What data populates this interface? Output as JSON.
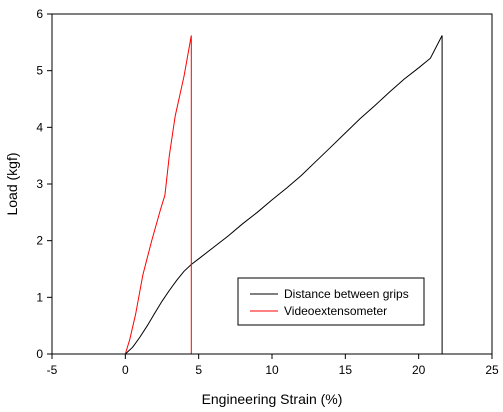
{
  "chart_data": {
    "type": "line",
    "title": "",
    "xlabel": "Engineering Strain (%)",
    "ylabel": "Load (kgf)",
    "xlim": [
      -5,
      25
    ],
    "ylim": [
      0,
      6
    ],
    "x_ticks": [
      -5,
      0,
      5,
      10,
      15,
      20,
      25
    ],
    "y_ticks": [
      0,
      1,
      2,
      3,
      4,
      5,
      6
    ],
    "grid": false,
    "legend_position": "bottom-right",
    "series": [
      {
        "name": "Distance between grips",
        "color": "#000000",
        "x": [
          0,
          0.5,
          1,
          1.5,
          2,
          2.5,
          3,
          3.5,
          4,
          4.5,
          5,
          6,
          7,
          8,
          9,
          10,
          11,
          12,
          13,
          14,
          15,
          16,
          17,
          18,
          19,
          20,
          20.8,
          21.6,
          21.6
        ],
        "y": [
          0,
          0.12,
          0.3,
          0.5,
          0.72,
          0.93,
          1.12,
          1.3,
          1.46,
          1.58,
          1.68,
          1.88,
          2.08,
          2.3,
          2.5,
          2.72,
          2.93,
          3.15,
          3.4,
          3.65,
          3.9,
          4.15,
          4.38,
          4.62,
          4.85,
          5.05,
          5.22,
          5.62,
          0
        ]
      },
      {
        "name": "Videoextensometer",
        "color": "#ff0000",
        "x": [
          0,
          0.3,
          0.7,
          1.2,
          1.8,
          2.4,
          2.7,
          3.0,
          3.4,
          4.0,
          4.5,
          4.5
        ],
        "y": [
          0,
          0.25,
          0.7,
          1.4,
          2.0,
          2.55,
          2.8,
          3.5,
          4.2,
          4.9,
          5.62,
          0
        ]
      }
    ]
  }
}
